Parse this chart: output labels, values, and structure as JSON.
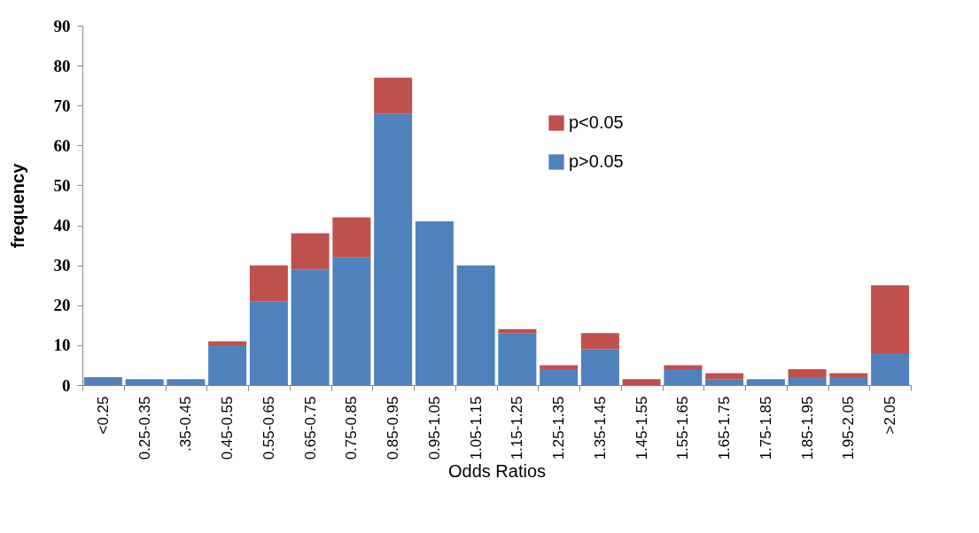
{
  "chart_data": {
    "type": "bar",
    "xlabel": "Odds Ratios",
    "ylabel": "frequency",
    "categories": [
      "<0.25",
      "0.25-0.35",
      ".35-0.45",
      "0.45-0.55",
      "0.55-0.65",
      "0.65-0.75",
      "0.75-0.85",
      "0.85-0.95",
      "0.95-1.05",
      "1.05-1.15",
      "1.15-1.25",
      "1.25-1.35",
      "1.35-1.45",
      "1.45-1.55",
      "1.55-1.65",
      "1.65-1.75",
      "1.75-1.85",
      "1.85-1.95",
      "1.95-2.05",
      ">2.05"
    ],
    "series": [
      {
        "name": "p>0.05",
        "color": "#4f81bd",
        "values": [
          2,
          1.5,
          1.5,
          10,
          21,
          29,
          32,
          68,
          41,
          30,
          13,
          4,
          9,
          0,
          4,
          1.5,
          1.5,
          2,
          2,
          8
        ]
      },
      {
        "name": "p<0.05",
        "color": "#c0504d",
        "values": [
          0,
          0,
          0,
          1,
          9,
          9,
          10,
          9,
          0,
          0,
          1,
          1,
          4,
          1.5,
          1,
          1.5,
          0,
          2,
          1,
          17
        ]
      }
    ],
    "stacked": true,
    "ylim": [
      0,
      90
    ],
    "yticks": [
      0,
      10,
      20,
      30,
      40,
      50,
      60,
      70,
      80,
      90
    ],
    "grid": false,
    "legend": "top right"
  }
}
